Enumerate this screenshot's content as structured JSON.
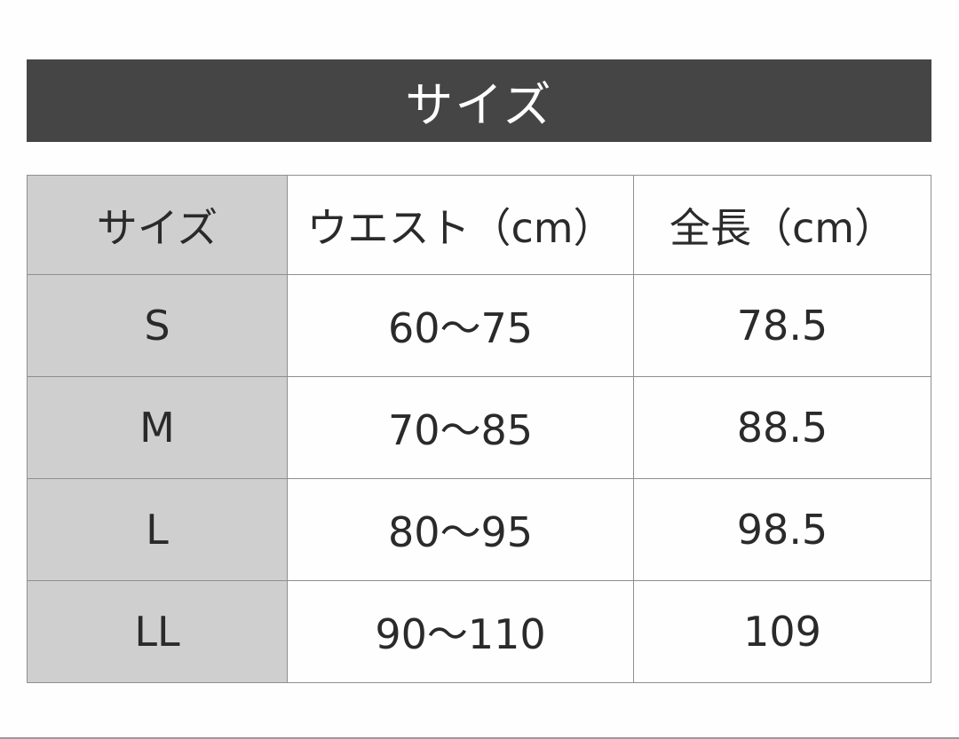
{
  "title": "サイズ",
  "table": {
    "headers": [
      "サイズ",
      "ウエスト（cm）",
      "全長（cm）"
    ],
    "rows": [
      [
        "S",
        "60〜75",
        "78.5"
      ],
      [
        "M",
        "70〜85",
        "88.5"
      ],
      [
        "L",
        "80〜95",
        "98.5"
      ],
      [
        "LL",
        "90〜110",
        "109"
      ]
    ]
  }
}
